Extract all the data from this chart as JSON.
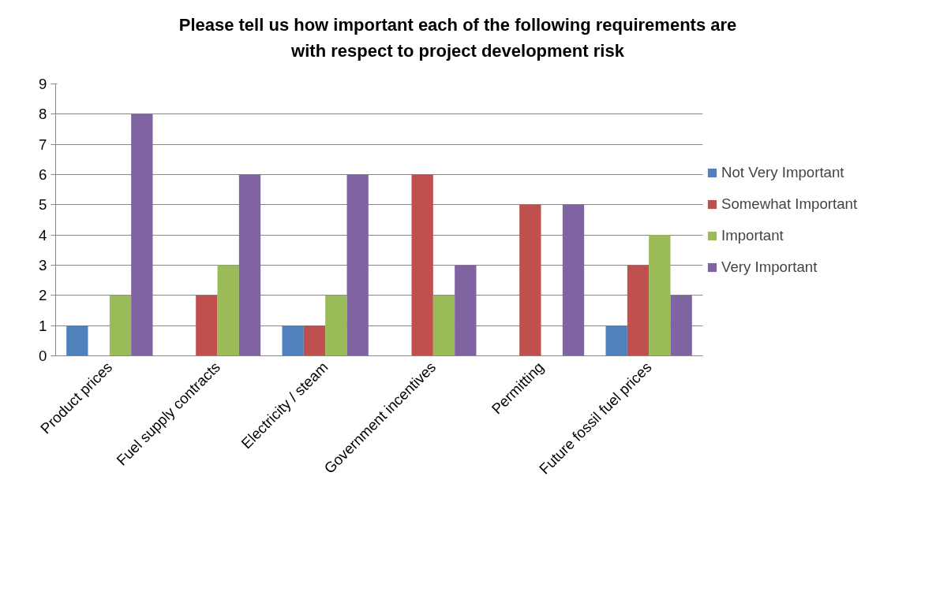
{
  "chart_data": {
    "type": "bar",
    "title": "Please tell us how important each of the following requirements are\nwith respect to project development risk",
    "categories": [
      "Product prices",
      "Fuel supply contracts",
      "Electricity / steam",
      "Government incentives",
      "Permitting",
      "Future fossil fuel prices"
    ],
    "series": [
      {
        "name": "Not Very Important",
        "color": "#4f81bd",
        "values": [
          1,
          0,
          1,
          0,
          0,
          1
        ]
      },
      {
        "name": "Somewhat Important",
        "color": "#c0504d",
        "values": [
          0,
          2,
          1,
          6,
          5,
          3
        ]
      },
      {
        "name": "Important",
        "color": "#9bbb59",
        "values": [
          2,
          3,
          2,
          2,
          0,
          4
        ]
      },
      {
        "name": "Very Important",
        "color": "#8064a2",
        "values": [
          8,
          6,
          6,
          3,
          5,
          2
        ]
      }
    ],
    "ylim": [
      0,
      9
    ],
    "yticks": [
      0,
      1,
      2,
      3,
      4,
      5,
      6,
      7,
      8,
      9
    ],
    "grid": "y",
    "legend": "right"
  }
}
